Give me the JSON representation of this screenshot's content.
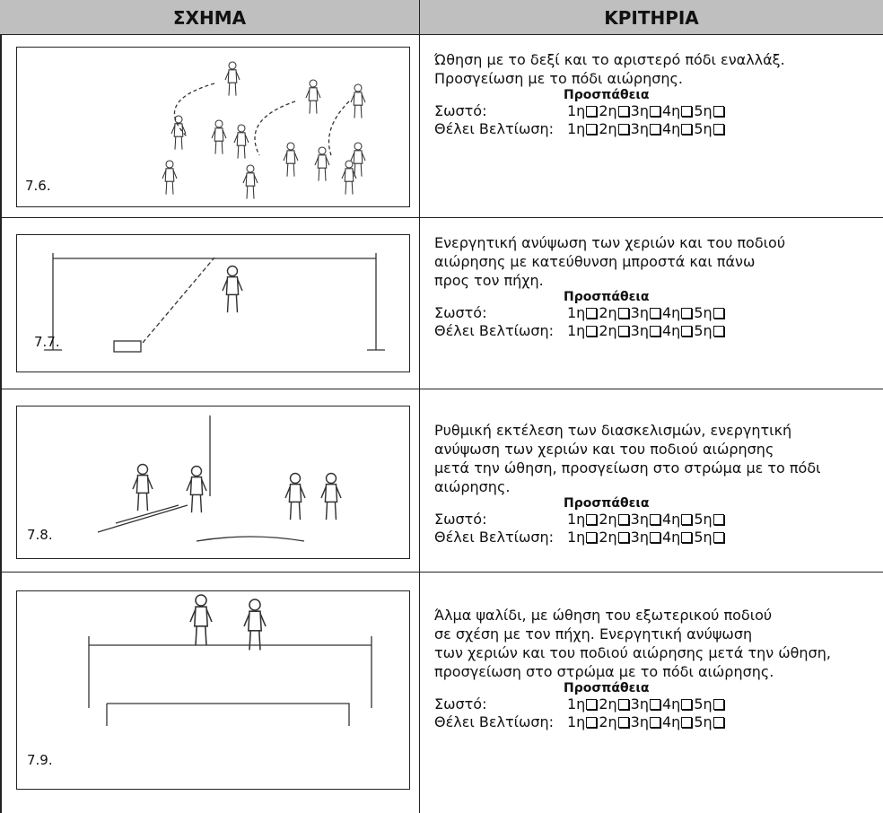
{
  "header": {
    "left": "ΣΧΗΜΑ",
    "right": "ΚΡΙΤΗΡΙΑ"
  },
  "rows": [
    {
      "label": "7.6.",
      "criteria": [
        "Ώθηση με το δεξί και το αριστερό πόδι εναλλάξ.",
        "Προσγείωση με το πόδι αιώρησης."
      ],
      "attempt_heading": "Προσπάθεια",
      "correct_label": "Σωστό:",
      "improve_label": "Θέλει Βελτίωση:",
      "attempts": [
        "1η",
        "2η",
        "3η",
        "4η",
        "5η"
      ]
    },
    {
      "label": "7.7.",
      "criteria": [
        "Ενεργητική ανύψωση των χεριών και του ποδιού",
        "αιώρησης με κατεύθυνση μπροστά και πάνω",
        "προς τον πήχη."
      ],
      "attempt_heading": "Προσπάθεια",
      "correct_label": "Σωστό:",
      "improve_label": "Θέλει Βελτίωση:",
      "attempts": [
        "1η",
        "2η",
        "3η",
        "4η",
        "5η"
      ]
    },
    {
      "label": "7.8.",
      "criteria": [
        "Ρυθμική εκτέλεση των διασκελισμών, ενεργητική",
        "ανύψωση των χεριών και του ποδιού αιώρησης",
        "μετά την ώθηση, προσγείωση στο στρώμα με το πόδι",
        "αιώρησης."
      ],
      "attempt_heading": "Προσπάθεια",
      "correct_label": "Σωστό:",
      "improve_label": "Θέλει Βελτίωση:",
      "attempts": [
        "1η",
        "2η",
        "3η",
        "4η",
        "5η"
      ]
    },
    {
      "label": "7.9.",
      "criteria": [
        "Άλμα ψαλίδι, με ώθηση του εξωτερικού ποδιού",
        "σε σχέση με τον πήχη. Ενεργητική ανύψωση",
        "των χεριών και του ποδιού αιώρησης μετά την ώθηση,",
        "προσγείωση στο στρώμα με το πόδι αιώρησης."
      ],
      "attempt_heading": "Προσπάθεια",
      "correct_label": "Σωστό:",
      "improve_label": "Θέλει Βελτίωση:",
      "attempts": [
        "1η",
        "2η",
        "3η",
        "4η",
        "5η"
      ]
    }
  ]
}
